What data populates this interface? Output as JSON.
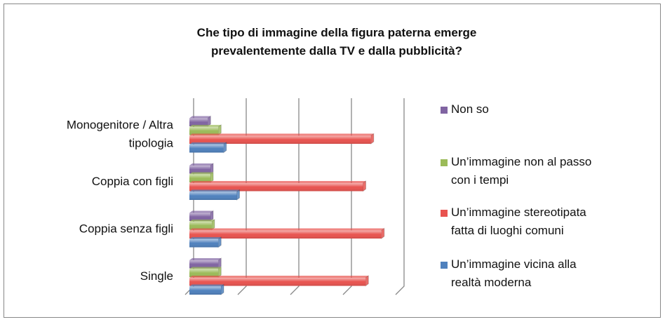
{
  "chart_data": {
    "type": "bar",
    "orientation": "horizontal",
    "title": "Che tipo di immagine della figura paterna emerge prevalentemente dalla TV e dalla pubblicità?",
    "categories": [
      "Single",
      "Coppia senza figli",
      "Coppia con figli",
      "Monogenitore / Altra tipologia"
    ],
    "series": [
      {
        "name": "Non so",
        "color": "#8064a2",
        "values": [
          11,
          8,
          8,
          7
        ]
      },
      {
        "name": "Un’immagine non al passo con i tempi",
        "color": "#9bbb59",
        "values": [
          11,
          8.5,
          8,
          11
        ]
      },
      {
        "name": "Un’immagine stereotipata fatta di luoghi comuni",
        "color": "#e8534f",
        "values": [
          67,
          73,
          66,
          69
        ]
      },
      {
        "name": "Un’immagine vicina alla realtà moderna",
        "color": "#4f81bd",
        "values": [
          12,
          11,
          18,
          13
        ]
      }
    ],
    "xlim": [
      0,
      80
    ],
    "xticks": [
      0,
      20,
      40,
      60,
      80
    ],
    "grid": true,
    "legend": "right"
  }
}
